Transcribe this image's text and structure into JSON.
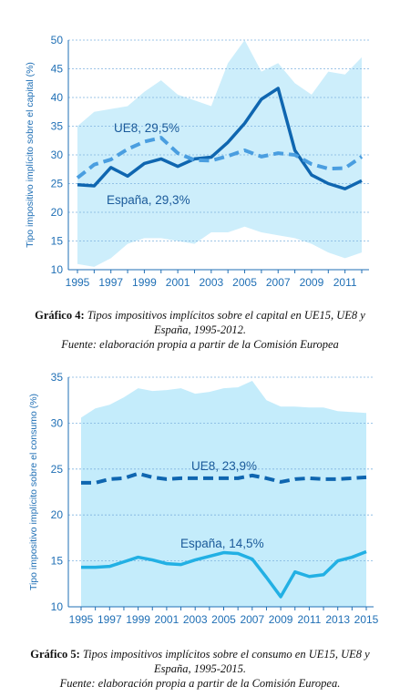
{
  "chart_data": [
    {
      "type": "area",
      "ylabel": "Tipo impositivo implícito sobre el capital (%)",
      "ylim": [
        10,
        50
      ],
      "yticks": [
        10,
        15,
        20,
        25,
        30,
        35,
        40,
        45,
        50
      ],
      "x": [
        1995,
        1996,
        1997,
        1998,
        1999,
        2000,
        2001,
        2002,
        2003,
        2004,
        2005,
        2006,
        2007,
        2008,
        2009,
        2010,
        2011,
        2012
      ],
      "xticks": [
        1995,
        1997,
        1999,
        2001,
        2003,
        2005,
        2007,
        2009,
        2011
      ],
      "band": {
        "upper": [
          35,
          37.5,
          38,
          38.5,
          41,
          43,
          40.5,
          39.5,
          38.5,
          46,
          50,
          44.5,
          46,
          42.5,
          40.5,
          44.5,
          44,
          47
        ],
        "lower": [
          11,
          10.5,
          12,
          14.5,
          15.5,
          15.5,
          15,
          14.5,
          16.5,
          16.5,
          17.5,
          16.5,
          16,
          15.5,
          14.5,
          13,
          12,
          13
        ]
      },
      "series": [
        {
          "name": "España",
          "label": "España, 29,3%",
          "style": "solid",
          "values": [
            24.8,
            24.6,
            27.8,
            26.3,
            28.5,
            29.3,
            28.0,
            29.3,
            29.6,
            32.2,
            35.5,
            39.7,
            41.6,
            30.8,
            26.5,
            25.0,
            24.1,
            25.5
          ]
        },
        {
          "name": "UE8",
          "label": "UE8, 29,5%",
          "style": "dashed",
          "values": [
            26.0,
            28.3,
            29.2,
            31.0,
            32.3,
            33.0,
            30.3,
            29.1,
            29.0,
            29.8,
            30.8,
            29.7,
            30.3,
            30.0,
            28.4,
            27.6,
            27.7,
            29.7
          ]
        }
      ],
      "colors": {
        "band": "#cdeefb",
        "espana": "#0f66b0",
        "ue8": "#4a9ee0",
        "grid": "#7fb3e0",
        "axis": "#1f6fb5"
      }
    },
    {
      "type": "area",
      "ylabel": "Tipo impositivo implícito sobre el consumo (%)",
      "ylim": [
        10,
        35
      ],
      "yticks": [
        10,
        15,
        20,
        25,
        30,
        35
      ],
      "x": [
        1995,
        1996,
        1997,
        1998,
        1999,
        2000,
        2001,
        2002,
        2003,
        2004,
        2005,
        2006,
        2007,
        2008,
        2009,
        2010,
        2011,
        2012,
        2013,
        2014,
        2015
      ],
      "xticks": [
        1995,
        1997,
        1999,
        2001,
        2003,
        2005,
        2007,
        2009,
        2011,
        2013,
        2015
      ],
      "band": {
        "upper": [
          30.6,
          31.6,
          32.0,
          32.8,
          33.8,
          33.5,
          33.6,
          33.8,
          33.2,
          33.4,
          33.8,
          33.9,
          34.6,
          32.5,
          31.8,
          31.8,
          31.7,
          31.7,
          31.3,
          31.2,
          31.1
        ],
        "lower": [
          10,
          10,
          10,
          10,
          10,
          10,
          10,
          10,
          10,
          10,
          10,
          10,
          10,
          10,
          10,
          10,
          10,
          10,
          10,
          10,
          10
        ]
      },
      "series": [
        {
          "name": "UE8",
          "label": "UE8, 23,9%",
          "style": "dashed",
          "values": [
            23.5,
            23.5,
            23.9,
            24.0,
            24.5,
            24.1,
            23.9,
            24.0,
            24.0,
            24.0,
            24.0,
            24.0,
            24.3,
            24.0,
            23.6,
            23.9,
            24.0,
            23.9,
            23.9,
            24.0,
            24.1
          ]
        },
        {
          "name": "España",
          "label": "España, 14,5%",
          "style": "solid",
          "values": [
            14.3,
            14.3,
            14.4,
            14.9,
            15.4,
            15.1,
            14.7,
            14.6,
            15.1,
            15.5,
            15.9,
            15.8,
            15.2,
            13.2,
            11.1,
            13.8,
            13.3,
            13.5,
            15.0,
            15.4,
            16.0
          ]
        }
      ],
      "colors": {
        "band": "#c4ecfb",
        "espana": "#22b0e4",
        "ue8": "#0f66b0",
        "grid": "#7fb3e0",
        "axis": "#1f6fb5"
      }
    }
  ],
  "captions": [
    {
      "bold": "Gráfico 4:",
      "line1": " Tipos impositivos implícitos sobre el capital en UE15, UE8 y",
      "line2": "España, 1995-2012.",
      "source": "Fuente: elaboración propia a partir de la Comisión Europea"
    },
    {
      "bold": "Gráfico 5:",
      "line1": " Tipos impositivos implícitos sobre el consumo en UE15, UE8 y",
      "line2": "España, 1995-2015.",
      "source": "Fuente: elaboración propia a partir de la Comisión Europea."
    }
  ]
}
